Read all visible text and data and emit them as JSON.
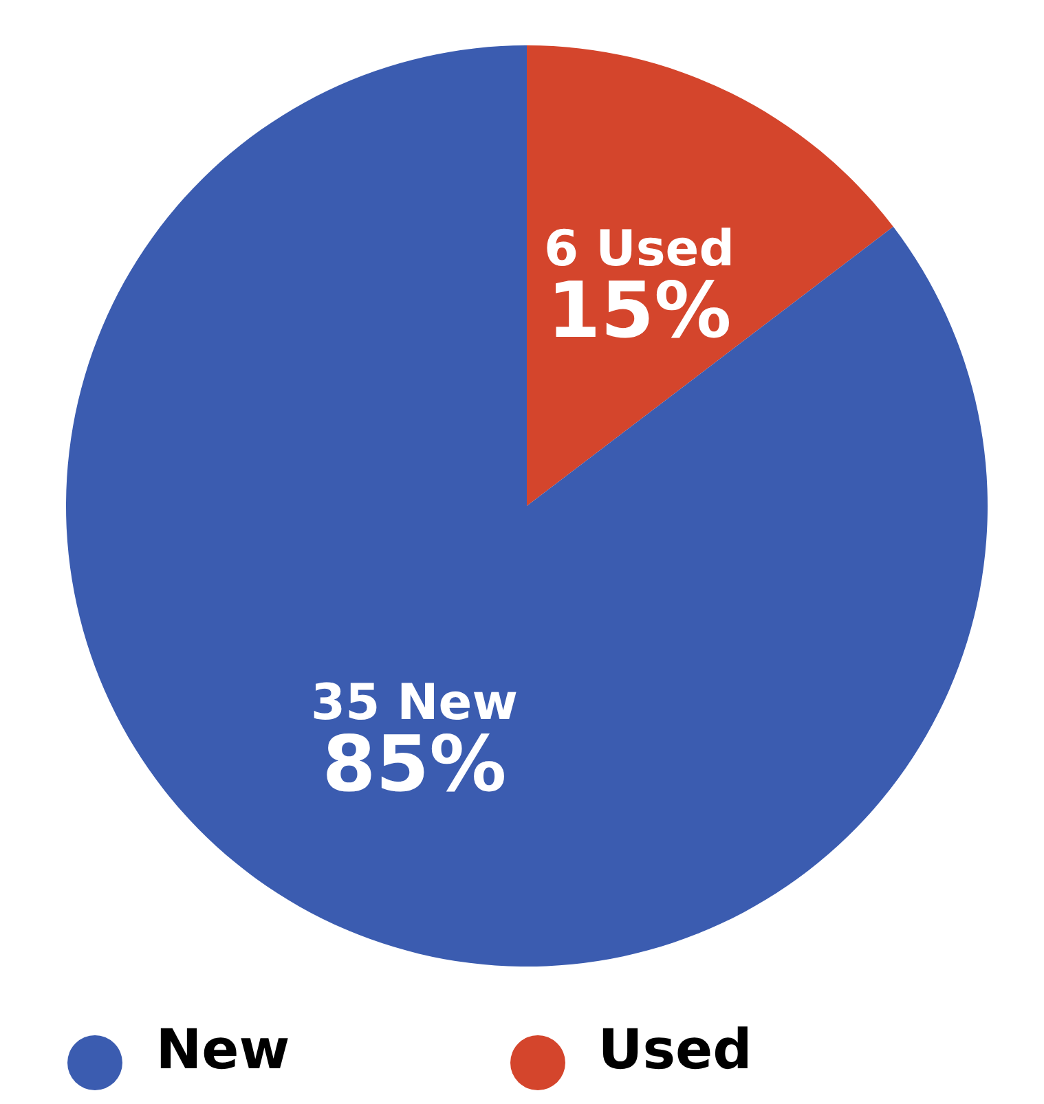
{
  "chart_data": {
    "type": "pie",
    "categories": [
      "Used",
      "New"
    ],
    "values": [
      6,
      35
    ],
    "colors": [
      "#d4452c",
      "#3b5cb0"
    ],
    "value_labels": [
      "6 Used\n15%",
      "35 New\n85%"
    ],
    "legend": "bottom"
  }
}
